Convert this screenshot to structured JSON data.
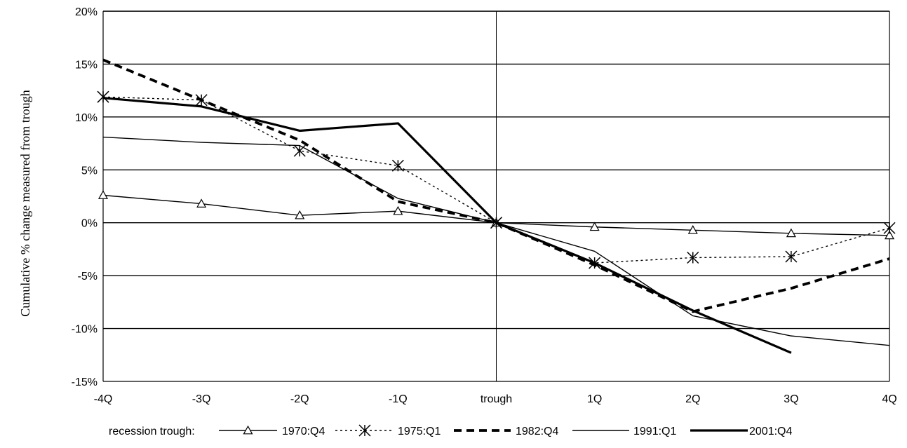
{
  "chart_data": {
    "type": "line",
    "title": "",
    "xlabel": "",
    "ylabel": "Cumulative % change measured from trough",
    "categories": [
      "-4Q",
      "-3Q",
      "-2Q",
      "-1Q",
      "trough",
      "1Q",
      "2Q",
      "3Q",
      "4Q"
    ],
    "ylim": [
      -15,
      20
    ],
    "yticks": [
      20,
      15,
      10,
      5,
      0,
      -5,
      -10,
      -15
    ],
    "ytick_labels": [
      "20%",
      "15%",
      "10%",
      "5%",
      "0%",
      "-5%",
      "-10%",
      "-15%"
    ],
    "grid": "horizontal",
    "legend_position": "bottom",
    "legend_title": "recession trough:",
    "series": [
      {
        "name": "1970:Q4",
        "style": "thin-triangle",
        "values": [
          2.6,
          1.8,
          0.7,
          1.1,
          0,
          -0.4,
          -0.7,
          -1.0,
          -1.2
        ]
      },
      {
        "name": "1975:Q1",
        "style": "dotted-star",
        "values": [
          11.9,
          11.6,
          6.8,
          5.4,
          0,
          -3.8,
          -3.3,
          -3.2,
          -0.5
        ]
      },
      {
        "name": "1982:Q4",
        "style": "thick-dashed",
        "values": [
          15.4,
          11.6,
          7.8,
          2.0,
          0,
          -4.0,
          -8.4,
          -6.2,
          -3.4
        ]
      },
      {
        "name": "1991:Q1",
        "style": "thin-solid",
        "values": [
          8.1,
          7.6,
          7.3,
          2.3,
          0,
          -2.7,
          -8.8,
          -10.7,
          -11.6
        ]
      },
      {
        "name": "2001:Q4",
        "style": "thick-solid",
        "values": [
          11.8,
          11.0,
          8.7,
          9.4,
          0,
          -3.8,
          -8.3,
          -12.3,
          null
        ]
      }
    ]
  }
}
